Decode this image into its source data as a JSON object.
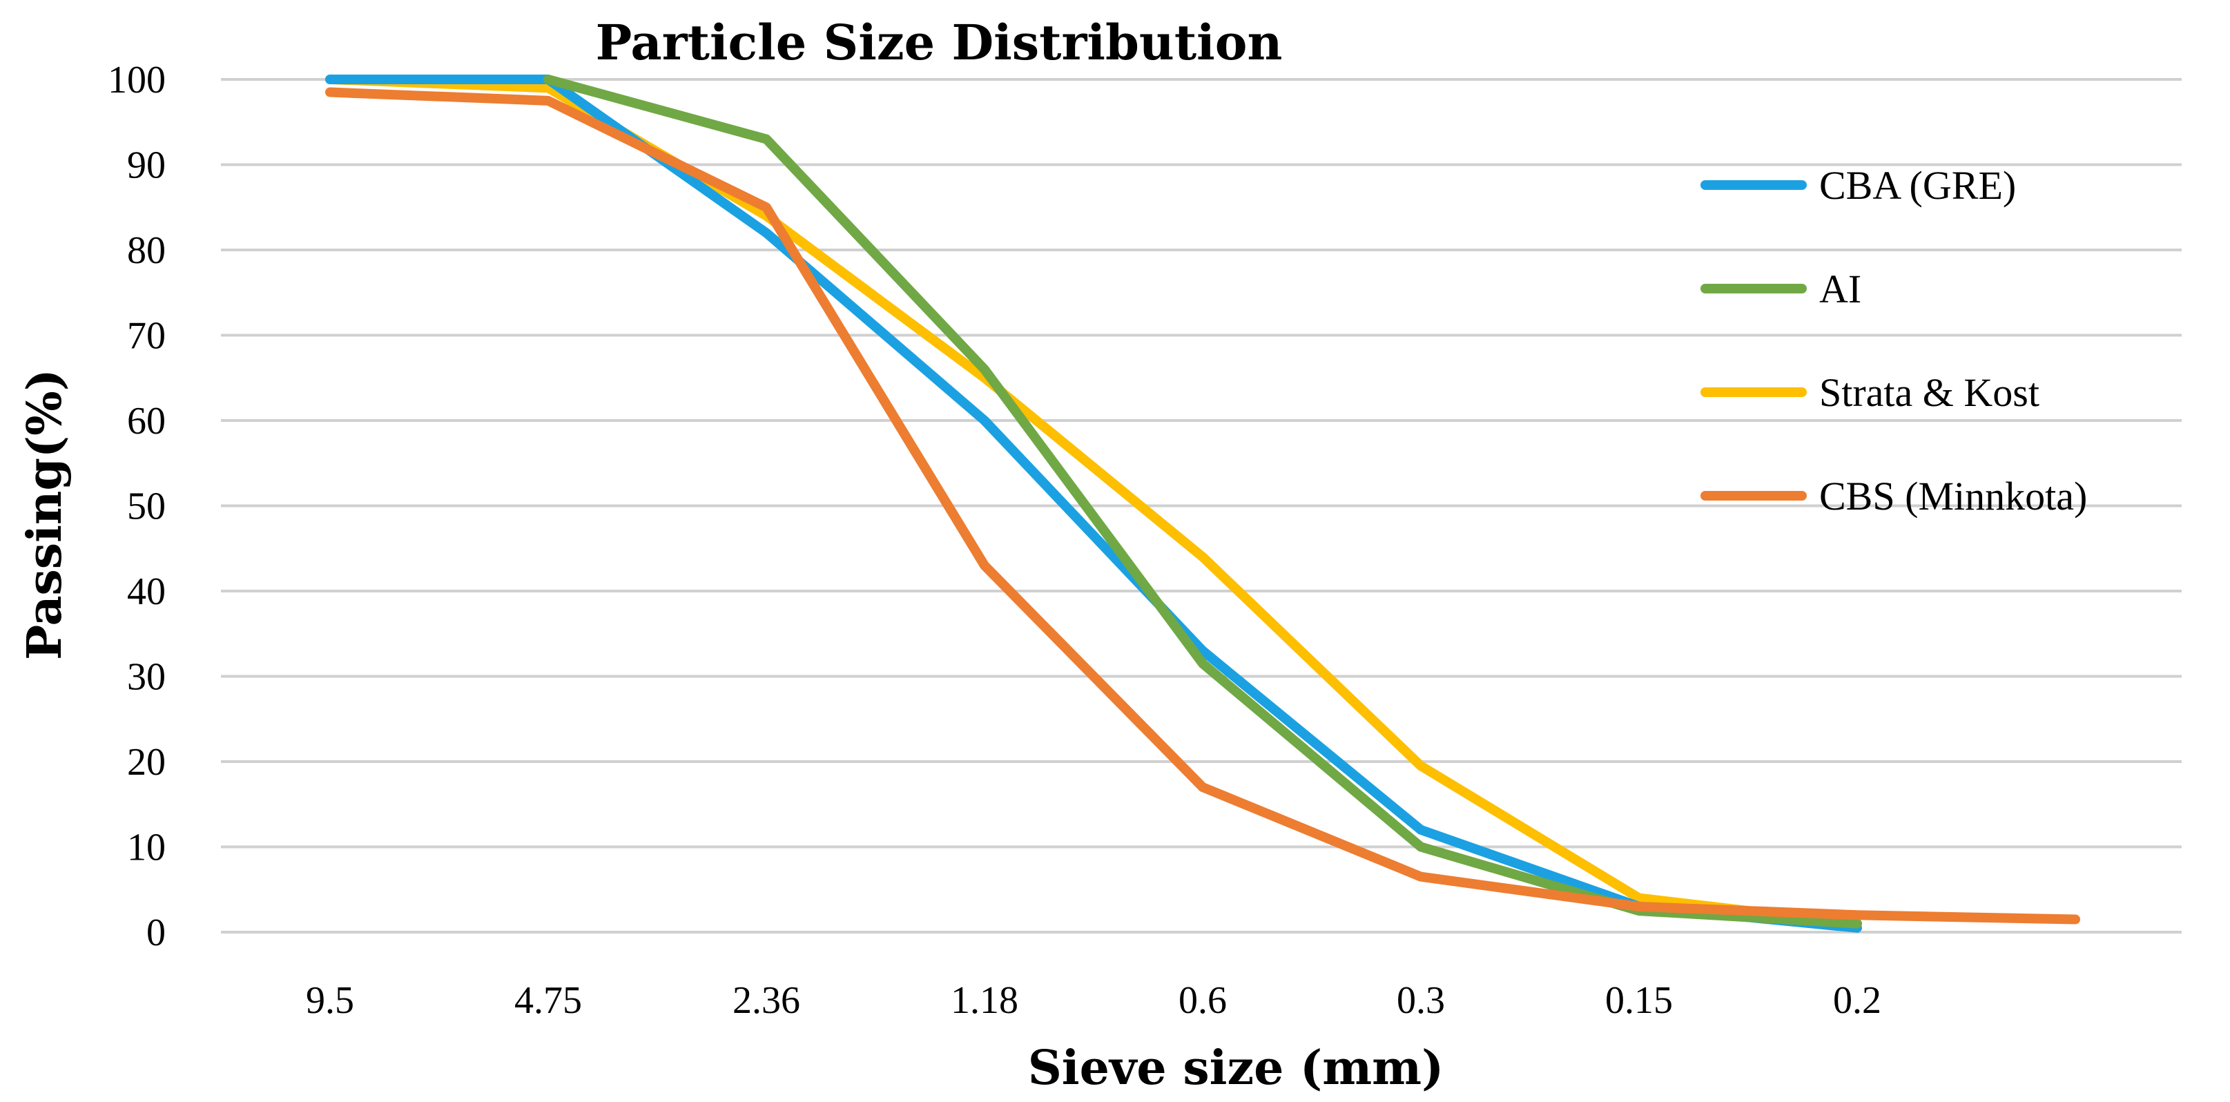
{
  "chart_data": {
    "type": "line",
    "title": "Particle Size Distribution",
    "xlabel": "Sieve size (mm)",
    "ylabel": "Passing(%)",
    "categories": [
      "9.5",
      "4.75",
      "2.36",
      "1.18",
      "0.6",
      "0.3",
      "0.15",
      "0.2",
      ""
    ],
    "ylim": [
      0,
      100
    ],
    "yticks": [
      0,
      10,
      20,
      30,
      40,
      50,
      60,
      70,
      80,
      90,
      100
    ],
    "grid": true,
    "legend_position": "right",
    "series": [
      {
        "name": "CBA (GRE)",
        "color": "#1ba1e2",
        "values": [
          100,
          100,
          82,
          60,
          33,
          12,
          3,
          0.5,
          null
        ]
      },
      {
        "name": "AI",
        "color": "#70a845",
        "values": [
          null,
          100,
          93,
          66,
          31.5,
          10,
          2.5,
          1,
          null
        ]
      },
      {
        "name": "Strata & Kost",
        "color": "#fdbf00",
        "values": [
          100,
          99,
          84,
          65,
          44,
          19.5,
          4,
          1,
          null
        ]
      },
      {
        "name": "CBS (Minnkota)",
        "color": "#ed7d31",
        "values": [
          98.5,
          97.5,
          85,
          43,
          17,
          6.5,
          3,
          2,
          1.5
        ]
      }
    ]
  }
}
